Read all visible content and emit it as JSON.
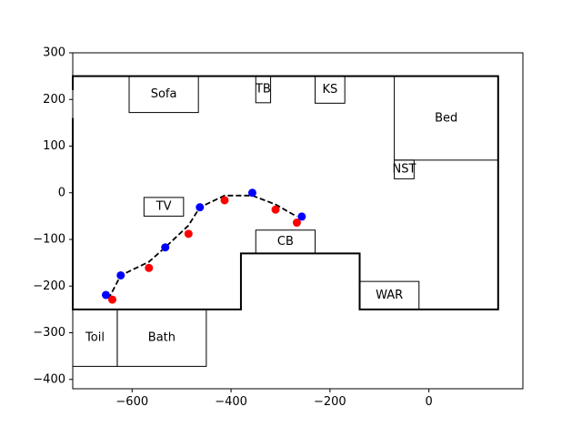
{
  "chart_data": {
    "type": "scatter",
    "title": "",
    "xlabel": "",
    "ylabel": "",
    "xlim": [
      -720,
      190
    ],
    "ylim": [
      -420,
      300
    ],
    "grid": false,
    "xticks": [
      -600,
      -400,
      -200,
      0
    ],
    "yticks": [
      300,
      200,
      100,
      0,
      -100,
      -200,
      -300,
      -400
    ],
    "walls": [
      [
        [
          -720,
          160
        ],
        [
          -720,
          -250
        ],
        [
          -380,
          -250
        ],
        [
          -380,
          -130
        ],
        [
          -140,
          -130
        ],
        [
          -140,
          -250
        ],
        [
          140,
          -250
        ],
        [
          140,
          250
        ],
        [
          -720,
          250
        ],
        [
          -720,
          220
        ]
      ]
    ],
    "rooms": [
      {
        "label": "Sofa",
        "x": [
          -606,
          -466
        ],
        "y": [
          172,
          250
        ]
      },
      {
        "label": "TB",
        "x": [
          -350,
          -320
        ],
        "y": [
          193,
          250
        ]
      },
      {
        "label": "KS",
        "x": [
          -230,
          -170
        ],
        "y": [
          192,
          250
        ]
      },
      {
        "label": "Bed",
        "x": [
          -70,
          140
        ],
        "y": [
          70,
          250
        ]
      },
      {
        "label": "NST",
        "x": [
          -70,
          -30
        ],
        "y": [
          30,
          70
        ]
      },
      {
        "label": "TV",
        "x": [
          -576,
          -496
        ],
        "y": [
          -50,
          -10
        ]
      },
      {
        "label": "CB",
        "x": [
          -350,
          -230
        ],
        "y": [
          -130,
          -80
        ]
      },
      {
        "label": "WAR",
        "x": [
          -140,
          -20
        ],
        "y": [
          -250,
          -190
        ]
      },
      {
        "label": "Toil",
        "x": [
          -720,
          -630
        ],
        "y": [
          -372,
          -250
        ]
      },
      {
        "label": "Bath",
        "x": [
          -630,
          -450
        ],
        "y": [
          -372,
          -250
        ]
      }
    ],
    "series": [
      {
        "color": "#0000ff",
        "marker": "circle",
        "points": [
          [
            -653,
            -219
          ],
          [
            -623,
            -177
          ],
          [
            -533,
            -117
          ],
          [
            -463,
            -31
          ],
          [
            -357,
            0
          ],
          [
            -257,
            -51
          ]
        ]
      },
      {
        "color": "#ff0000",
        "marker": "circle",
        "points": [
          [
            -640,
            -229
          ],
          [
            -566,
            -161
          ],
          [
            -486,
            -88
          ],
          [
            -413,
            -16
          ],
          [
            -310,
            -36
          ],
          [
            -267,
            -64
          ]
        ]
      }
    ],
    "path": {
      "color": "#000000",
      "style": "dashed",
      "points": [
        [
          -648,
          -228
        ],
        [
          -623,
          -177
        ],
        [
          -566,
          -148
        ],
        [
          -533,
          -117
        ],
        [
          -486,
          -70
        ],
        [
          -463,
          -31
        ],
        [
          -413,
          -6
        ],
        [
          -357,
          -6
        ],
        [
          -310,
          -25
        ],
        [
          -267,
          -51
        ]
      ]
    }
  }
}
